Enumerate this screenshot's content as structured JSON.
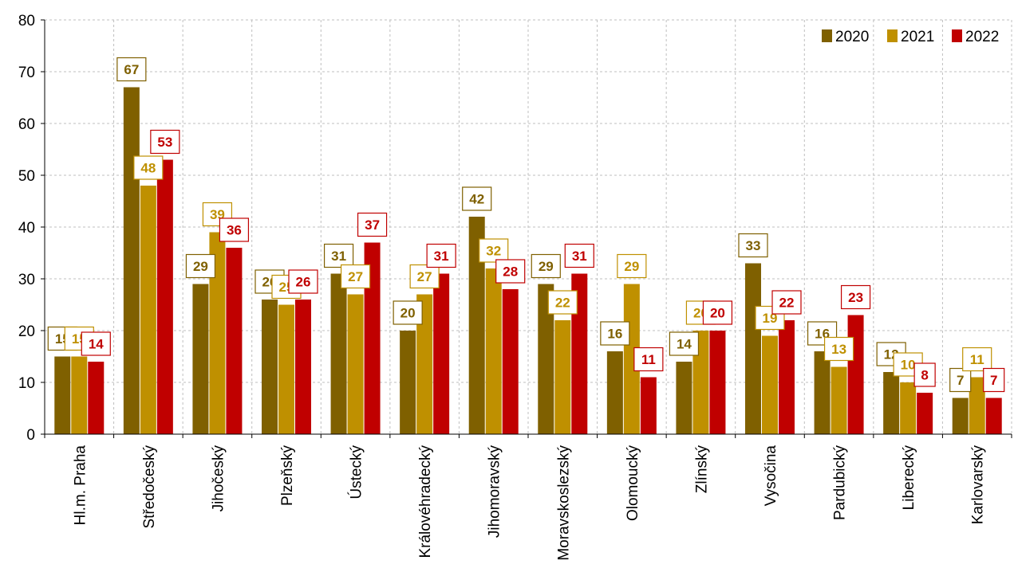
{
  "chart_data": {
    "type": "bar",
    "categories": [
      "Hl.m. Praha",
      "Středočeský",
      "Jihočeský",
      "Plzeňský",
      "Ústecký",
      "Královéhradecký",
      "Jihomoravský",
      "Moravskoslezský",
      "Olomoucký",
      "Zlínský",
      "Vysočina",
      "Pardubický",
      "Liberecký",
      "Karlovarský"
    ],
    "series": [
      {
        "name": "2020",
        "color": "#7f6000",
        "values": [
          15,
          67,
          29,
          26,
          31,
          20,
          42,
          29,
          16,
          14,
          33,
          16,
          12,
          7
        ]
      },
      {
        "name": "2021",
        "color": "#bf9000",
        "values": [
          15,
          48,
          39,
          25,
          27,
          27,
          32,
          22,
          29,
          20,
          19,
          13,
          10,
          11
        ]
      },
      {
        "name": "2022",
        "color": "#c00000",
        "values": [
          14,
          53,
          36,
          26,
          37,
          31,
          28,
          31,
          11,
          20,
          22,
          23,
          8,
          7
        ]
      }
    ],
    "ylim": [
      0,
      80
    ],
    "yticks": [
      0,
      10,
      20,
      30,
      40,
      50,
      60,
      70,
      80
    ],
    "grid": true,
    "legend_position": "top-right",
    "data_labels": true
  }
}
